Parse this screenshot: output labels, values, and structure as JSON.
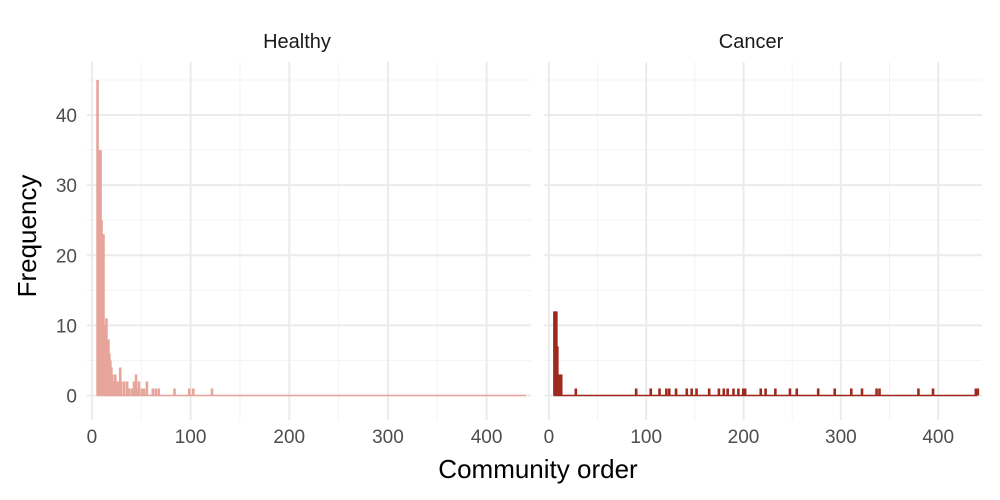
{
  "chart_data": {
    "type": "bar",
    "xlabel": "Community order",
    "ylabel": "Frequency",
    "xlim": [
      -5,
      445
    ],
    "ylim": [
      0,
      47
    ],
    "x_ticks": [
      0,
      100,
      200,
      300,
      400
    ],
    "y_ticks": [
      0,
      10,
      20,
      30,
      40
    ],
    "grid": true,
    "legend": "none",
    "panels": [
      {
        "name": "Healthy",
        "color": "#e6a49a",
        "baseline_to": 440,
        "bars": [
          [
            6,
            45
          ],
          [
            7,
            10
          ],
          [
            8,
            35
          ],
          [
            9,
            35
          ],
          [
            10,
            25
          ],
          [
            11,
            20
          ],
          [
            12,
            23
          ],
          [
            13,
            10
          ],
          [
            14,
            7
          ],
          [
            15,
            11
          ],
          [
            16,
            5
          ],
          [
            17,
            8
          ],
          [
            18,
            6
          ],
          [
            19,
            5
          ],
          [
            20,
            4
          ],
          [
            21,
            3
          ],
          [
            22,
            2
          ],
          [
            24,
            3
          ],
          [
            25,
            2
          ],
          [
            27,
            2
          ],
          [
            29,
            4
          ],
          [
            30,
            2
          ],
          [
            33,
            2
          ],
          [
            36,
            2
          ],
          [
            38,
            1
          ],
          [
            41,
            1
          ],
          [
            43,
            2
          ],
          [
            45,
            3
          ],
          [
            47,
            1
          ],
          [
            48,
            2
          ],
          [
            51,
            1
          ],
          [
            53,
            1
          ],
          [
            56,
            2
          ],
          [
            62,
            1
          ],
          [
            65,
            1
          ],
          [
            68,
            1
          ],
          [
            84,
            1
          ],
          [
            99,
            1
          ],
          [
            103,
            1
          ],
          [
            122,
            1
          ]
        ]
      },
      {
        "name": "Cancer",
        "color": "#9e2a1f",
        "baseline_to": 440,
        "bars": [
          [
            6,
            12
          ],
          [
            7,
            7
          ],
          [
            8,
            12
          ],
          [
            9,
            7
          ],
          [
            10,
            3
          ],
          [
            11,
            3
          ],
          [
            12,
            3
          ],
          [
            13,
            3
          ],
          [
            28,
            1
          ],
          [
            90,
            1
          ],
          [
            105,
            1
          ],
          [
            114,
            1
          ],
          [
            121,
            1
          ],
          [
            124,
            1
          ],
          [
            131,
            1
          ],
          [
            142,
            1
          ],
          [
            147,
            1
          ],
          [
            152,
            1
          ],
          [
            165,
            1
          ],
          [
            175,
            1
          ],
          [
            180,
            1
          ],
          [
            184,
            1
          ],
          [
            190,
            1
          ],
          [
            195,
            1
          ],
          [
            200,
            1
          ],
          [
            202,
            1
          ],
          [
            218,
            1
          ],
          [
            223,
            1
          ],
          [
            233,
            1
          ],
          [
            248,
            1
          ],
          [
            255,
            1
          ],
          [
            277,
            1
          ],
          [
            294,
            1
          ],
          [
            311,
            1
          ],
          [
            322,
            1
          ],
          [
            337,
            1
          ],
          [
            340,
            1
          ],
          [
            380,
            1
          ],
          [
            395,
            1
          ],
          [
            439,
            1
          ],
          [
            441,
            1
          ]
        ]
      }
    ]
  }
}
